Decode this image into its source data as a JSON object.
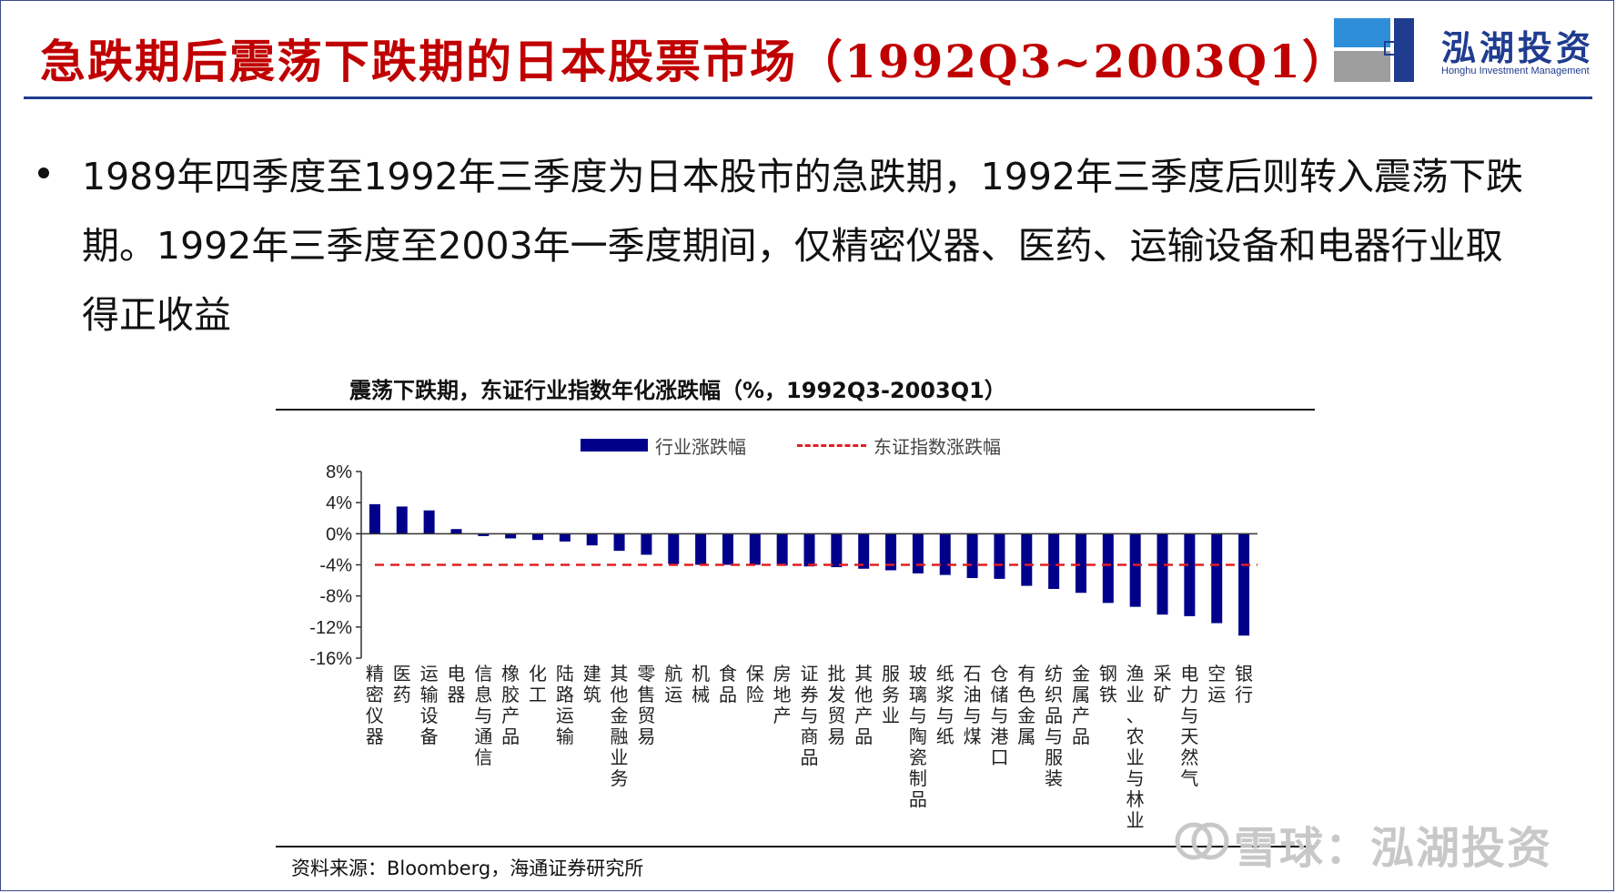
{
  "slide": {
    "title": "急跌期后震荡下跌期的日本股票市场（1992Q3~2003Q1）",
    "bullet": "1989年四季度至1992年三季度为日本股市的急跌期，1992年三季度后则转入震荡下跌期。1992年三季度至2003年一季度期间，仅精密仪器、医药、运输设备和电器行业取得正收益"
  },
  "logo": {
    "name": "泓湖投资",
    "subtitle": "Honghu Investment Management",
    "colors": {
      "blue": "#1f3c8f",
      "light_blue": "#2e8fd8",
      "gray": "#9e9e9e"
    }
  },
  "watermark": {
    "text": "雪球：泓湖投资",
    "icon": "snowball-icon"
  },
  "colors": {
    "title_red": "#c00000",
    "accent_blue": "#1f3c8f",
    "bar_navy": "#00008b",
    "index_red": "#e02020"
  },
  "chart_data": {
    "type": "bar",
    "title": "震荡下跌期，东证行业指数年化涨跌幅（%，1992Q3-2003Q1）",
    "source": "资料来源：Bloomberg，海通证券研究所",
    "categories": [
      "精密仪器",
      "医药",
      "运输设备",
      "电器",
      "信息与通信",
      "橡胶产品",
      "化工",
      "陆路运输",
      "建筑",
      "其他金融业务",
      "零售贸易",
      "航运",
      "机械",
      "食品",
      "保险",
      "房地产",
      "证券与商品",
      "批发贸易",
      "其他产品",
      "服务业",
      "玻璃与陶瓷制品",
      "纸浆与纸",
      "石油与煤",
      "仓储与港口",
      "有色金属",
      "纺织品与服装",
      "金属产品",
      "钢铁",
      "渔业、农业与林业",
      "采矿",
      "电力与天然气",
      "空运",
      "银行"
    ],
    "series": [
      {
        "name": "行业涨跌幅",
        "type": "bar",
        "color": "#00008b",
        "values": [
          3.8,
          3.5,
          3.0,
          0.6,
          -0.3,
          -0.6,
          -0.8,
          -1.0,
          -1.5,
          -2.2,
          -2.7,
          -3.9,
          -4.0,
          -4.0,
          -4.0,
          -4.1,
          -4.2,
          -4.3,
          -4.5,
          -4.7,
          -5.1,
          -5.3,
          -5.7,
          -5.8,
          -6.7,
          -7.1,
          -7.6,
          -8.9,
          -9.4,
          -10.4,
          -10.6,
          -11.5,
          -13.1
        ]
      },
      {
        "name": "东证指数涨跌幅",
        "type": "line",
        "style": "dashed",
        "color": "#e02020",
        "value": -4.0
      }
    ],
    "ylim": [
      -16,
      8
    ],
    "yticks": [
      8,
      4,
      0,
      -4,
      -8,
      -12,
      -16
    ],
    "ytick_labels": [
      "8%",
      "4%",
      "0%",
      "-4%",
      "-8%",
      "-12%",
      "-16%"
    ],
    "legend_position": "top",
    "grid": false
  }
}
